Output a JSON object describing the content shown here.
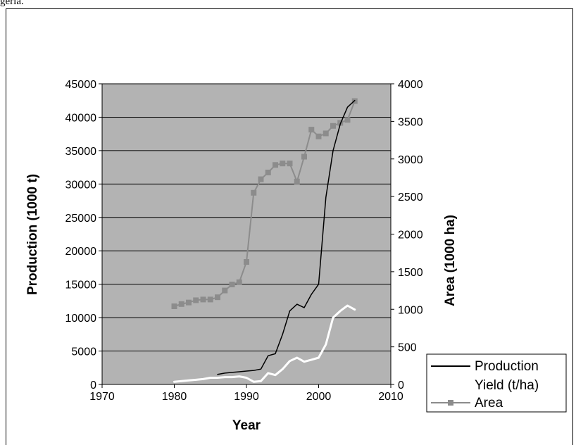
{
  "caption": "geria.",
  "chart_data": {
    "type": "line",
    "x": [
      1980,
      1981,
      1982,
      1983,
      1984,
      1985,
      1986,
      1987,
      1988,
      1989,
      1990,
      1991,
      1992,
      1993,
      1994,
      1995,
      1996,
      1997,
      1998,
      1999,
      2000,
      2001,
      2002,
      2003,
      2004,
      2005
    ],
    "xlabel": "Year",
    "xlim": [
      1970,
      2010
    ],
    "x_ticks": [
      "1970",
      "1980",
      "1990",
      "2000",
      "2010"
    ],
    "ylabel_left": "Production (1000 t)",
    "ylim_left": [
      0,
      45000
    ],
    "y_ticks_left": [
      "0",
      "5000",
      "10000",
      "15000",
      "20000",
      "25000",
      "30000",
      "35000",
      "40000",
      "45000"
    ],
    "ylabel_right": "Area (1000 ha)",
    "ylim_right": [
      0,
      4000
    ],
    "y_ticks_right": [
      "0",
      "500",
      "1000",
      "1500",
      "2000",
      "2500",
      "3000",
      "3500",
      "4000"
    ],
    "grid": "horizontal",
    "plot_background": "#b3b3b3",
    "legend_position": "bottom-right",
    "series": [
      {
        "name": "Production",
        "axis": "left",
        "color": "#000000",
        "marker": "none",
        "values": [
          null,
          null,
          null,
          null,
          null,
          null,
          1500,
          1700,
          1800,
          1900,
          2000,
          2100,
          2300,
          4300,
          4600,
          7500,
          11000,
          12000,
          11500,
          13500,
          15000,
          28000,
          35000,
          39000,
          41500,
          42500
        ]
      },
      {
        "name": "Yield (t/ha)",
        "axis": "left",
        "color": "#ffffff",
        "marker": "none",
        "values": [
          400,
          500,
          600,
          700,
          800,
          1000,
          1000,
          1100,
          1100,
          1200,
          1000,
          400,
          500,
          1700,
          1400,
          2300,
          3500,
          4000,
          3400,
          3700,
          4000,
          6000,
          10000,
          11000,
          11800,
          11200
        ]
      },
      {
        "name": "Area",
        "axis": "right",
        "color": "#8c8c8c",
        "marker": "square",
        "values": [
          1040,
          1070,
          1090,
          1120,
          1130,
          1130,
          1160,
          1250,
          1330,
          1360,
          1630,
          2550,
          2730,
          2820,
          2920,
          2940,
          2940,
          2700,
          3030,
          3390,
          3300,
          3340,
          3440,
          3480,
          3520,
          3770
        ]
      }
    ]
  }
}
